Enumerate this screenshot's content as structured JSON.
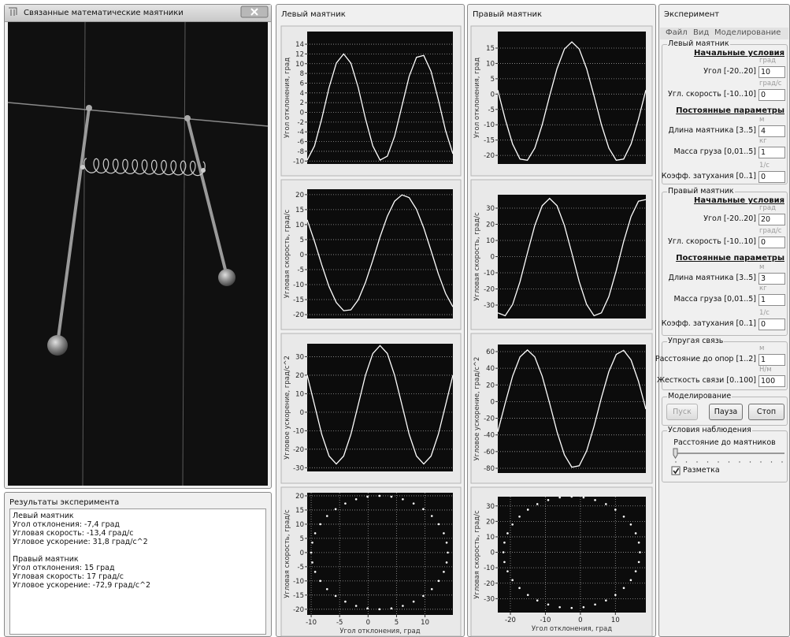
{
  "scene_window": {
    "title": "Связанные математические маятники"
  },
  "results": {
    "title": "Результаты эксперимента",
    "left": {
      "title": "Левый маятник",
      "lines": [
        "Угол отклонения: -7,4 град",
        "Угловая скорость: -13,4 град/с",
        "Угловое ускорение: 31,8 град/с^2"
      ]
    },
    "right": {
      "title": "Правый маятник",
      "lines": [
        "Угол отклонения: 15 град",
        "Угловая скорость: 17 град/с",
        "Угловое ускорение: -72,9 град/с^2"
      ]
    }
  },
  "left_window": {
    "title": "Левый маятник"
  },
  "right_window": {
    "title": "Правый маятник"
  },
  "experiment": {
    "title": "Эксперимент",
    "menu": [
      "Файл",
      "Вид",
      "Моделирование"
    ],
    "left_group": {
      "legend": "Левый маятник",
      "initial_heading": "Начальные условия",
      "fields": [
        {
          "unit": "град",
          "label": "Угол [-20..20]",
          "value": "10"
        },
        {
          "unit": "град/с",
          "label": "Угл. скорость [-10..10]",
          "value": "0"
        }
      ],
      "params_heading": "Постоянные параметры",
      "params": [
        {
          "unit": "м",
          "label": "Длина маятника [3..5]",
          "value": "4"
        },
        {
          "unit": "кг",
          "label": "Масса груза [0,01..5]",
          "value": "1"
        },
        {
          "unit": "1/с",
          "label": "Коэфф. затухания [0..1]",
          "value": "0"
        }
      ]
    },
    "right_group": {
      "legend": "Правый маятник",
      "initial_heading": "Начальные условия",
      "fields": [
        {
          "unit": "град",
          "label": "Угол [-20..20]",
          "value": "20"
        },
        {
          "unit": "град/с",
          "label": "Угл. скорость [-10..10]",
          "value": "0"
        }
      ],
      "params_heading": "Постоянные параметры",
      "params": [
        {
          "unit": "м",
          "label": "Длина маятника [3..5]",
          "value": "3"
        },
        {
          "unit": "кг",
          "label": "Масса груза [0,01..5]",
          "value": "1"
        },
        {
          "unit": "1/с",
          "label": "Коэфф. затухания [0..1]",
          "value": "0"
        }
      ]
    },
    "coupling": {
      "legend": "Упругая связь",
      "fields": [
        {
          "unit": "м",
          "label": "Расстояние до опор [1..2]",
          "value": "1"
        },
        {
          "unit": "Н/м",
          "label": "Жесткость связи [0..100]",
          "value": "100"
        }
      ]
    },
    "modeling": {
      "legend": "Моделирование",
      "buttons": [
        "Пуск",
        "Пауза",
        "Стоп"
      ]
    },
    "observation": {
      "legend": "Условия наблюдения",
      "slider_label": "Расстояние до маятников",
      "checkbox": "Разметка"
    }
  },
  "chart_data": [
    {
      "type": "line",
      "y_label": "Угол отклонения, град",
      "color": "#ffffff",
      "grid": true,
      "ylim": [
        -10.6,
        16.6
      ],
      "yticks": [
        14,
        12,
        10,
        8,
        6,
        4,
        2,
        0,
        -2,
        -4,
        -6,
        -8,
        -10
      ],
      "values": [
        -9.8,
        -6.9,
        -1.3,
        5.1,
        10.1,
        12,
        10.1,
        5.1,
        -1.3,
        -6.9,
        -9.8,
        -9.0,
        -4.9,
        1.3,
        7.4,
        11.3,
        11.7,
        8.4,
        2.6,
        -3.8,
        -8.5
      ]
    },
    {
      "type": "line",
      "y_label": "Угловая скорость, град/с",
      "color": "#ffffff",
      "grid": true,
      "ylim": [
        -21.3,
        21.8
      ],
      "yticks": [
        20,
        15,
        10,
        5,
        0,
        -5,
        -10,
        -15,
        -20
      ],
      "values": [
        11.6,
        4.4,
        -3.4,
        -10.7,
        -16.0,
        -18.7,
        -18.4,
        -15.1,
        -9.3,
        -1.9,
        5.9,
        12.8,
        17.8,
        19.9,
        19.0,
        15.1,
        8.9,
        1.3,
        -6.4,
        -13.0,
        -17.4
      ]
    },
    {
      "type": "line",
      "y_label": "Угловое ускорение, град/с^2",
      "color": "#ffffff",
      "grid": true,
      "ylim": [
        -32,
        37
      ],
      "yticks": [
        30,
        20,
        10,
        0,
        -10,
        -20,
        -30
      ],
      "values": [
        20,
        4,
        -12,
        -23.7,
        -28,
        -23.7,
        -12,
        4,
        20,
        31.7,
        36,
        31.7,
        20,
        4,
        -12,
        -23.7,
        -28,
        -23.7,
        -12,
        4,
        20
      ]
    },
    {
      "type": "scatter",
      "y_label": "Угловая скорость, град/с",
      "x_label": "Угол отклонения, град",
      "color": "#ffffff",
      "grid": true,
      "xlim": [
        -10.7,
        14.9
      ],
      "xticks": [
        -10,
        -5,
        0,
        5,
        10
      ],
      "ylim": [
        -22,
        21.1
      ],
      "yticks": [
        20,
        15,
        10,
        5,
        0,
        -5,
        -10,
        -15,
        -20
      ],
      "x": [
        14,
        13.8,
        13.3,
        12.4,
        11.2,
        9.7,
        8,
        6.1,
        4.1,
        2,
        -0.1,
        -2.1,
        -4,
        -5.7,
        -7.2,
        -8.4,
        -9.3,
        -9.8,
        -10,
        -9.8,
        -9.3,
        -8.4,
        -7.2,
        -5.7,
        -4,
        -2.1,
        -0.1,
        2,
        4.1,
        6.1,
        8,
        9.7,
        11.2,
        12.4,
        13.3,
        13.8
      ],
      "values": [
        0,
        3.5,
        6.8,
        10,
        12.9,
        15.3,
        17.3,
        18.8,
        19.7,
        20,
        19.7,
        18.8,
        17.3,
        15.3,
        12.9,
        10,
        6.8,
        3.5,
        0,
        -3.5,
        -6.8,
        -10,
        -12.9,
        -15.3,
        -17.3,
        -18.8,
        -19.7,
        -20,
        -19.7,
        -18.8,
        -17.3,
        -15.3,
        -12.9,
        -10,
        -6.8,
        -3.5
      ]
    },
    {
      "type": "line",
      "y_label": "Угол отклонения, град",
      "color": "#ffffff",
      "grid": true,
      "ylim": [
        -22.8,
        20.4
      ],
      "yticks": [
        15,
        10,
        5,
        0,
        -5,
        -10,
        -15,
        -20
      ],
      "values": [
        1.3,
        -8.2,
        -16.3,
        -21.2,
        -21.6,
        -17.6,
        -10.0,
        -0.6,
        8.3,
        14.7,
        17,
        14.7,
        8.3,
        -0.6,
        -10.0,
        -17.6,
        -21.6,
        -21.2,
        -16.3,
        -8.2,
        1.3
      ]
    },
    {
      "type": "line",
      "y_label": "Угловая скорость, град/с",
      "color": "#ffffff",
      "grid": true,
      "ylim": [
        -38.3,
        38.3
      ],
      "yticks": [
        30,
        20,
        10,
        0,
        -10,
        -20,
        -30
      ],
      "values": [
        -34.8,
        -36.6,
        -29.6,
        -15.5,
        2.2,
        19.3,
        31.5,
        36,
        31.5,
        19.3,
        2.2,
        -15.5,
        -29.6,
        -36.6,
        -34.8,
        -24.8,
        -8.7,
        9.3,
        24.8,
        34.3,
        35.3
      ]
    },
    {
      "type": "line",
      "y_label": "Угловое ускорение, град/с^2",
      "color": "#ffffff",
      "grid": true,
      "ylim": [
        -85.7,
        68.5
      ],
      "yticks": [
        60,
        40,
        20,
        0,
        -20,
        -40,
        -60,
        -80
      ],
      "values": [
        -36.2,
        -2.0,
        30.5,
        53.6,
        62,
        53.6,
        30.5,
        -2.0,
        -36.2,
        -63.9,
        -78.7,
        -77.0,
        -59.2,
        -29.6,
        4.8,
        36.0,
        56.6,
        61.6,
        50.0,
        24.4,
        -9
      ]
    },
    {
      "type": "scatter",
      "y_label": "Угловая скорость, град/с",
      "x_label": "Угол отклонения, град",
      "color": "#ffffff",
      "grid": true,
      "xlim": [
        -23.6,
        18.7
      ],
      "xticks": [
        -20,
        -10,
        0,
        10
      ],
      "ylim": [
        -39,
        36
      ],
      "yticks": [
        30,
        20,
        10,
        0,
        -10,
        -20,
        -30
      ],
      "x": [
        17,
        16.7,
        15.8,
        14.4,
        12.4,
        10,
        7.3,
        4.2,
        0.9,
        -2.5,
        -5.9,
        -9.2,
        -12.3,
        -15,
        -17.4,
        -19.4,
        -20.8,
        -21.7,
        -22,
        -21.7,
        -20.8,
        -19.4,
        -17.4,
        -15,
        -12.3,
        -9.2,
        -5.9,
        -2.5,
        0.9,
        4.2,
        7.3,
        10,
        12.4,
        14.4,
        15.8,
        16.7
      ],
      "values": [
        0,
        6.3,
        12.3,
        18,
        23.1,
        27.6,
        31.2,
        33.8,
        35.5,
        36,
        35.5,
        33.8,
        31.2,
        27.6,
        23.1,
        18,
        12.3,
        6.3,
        0,
        -6.3,
        -12.3,
        -18,
        -23.1,
        -27.6,
        -31.2,
        -33.8,
        -35.5,
        -36,
        -35.5,
        -33.8,
        -31.2,
        -27.6,
        -23.1,
        -18,
        -12.3,
        -6.3
      ]
    }
  ]
}
